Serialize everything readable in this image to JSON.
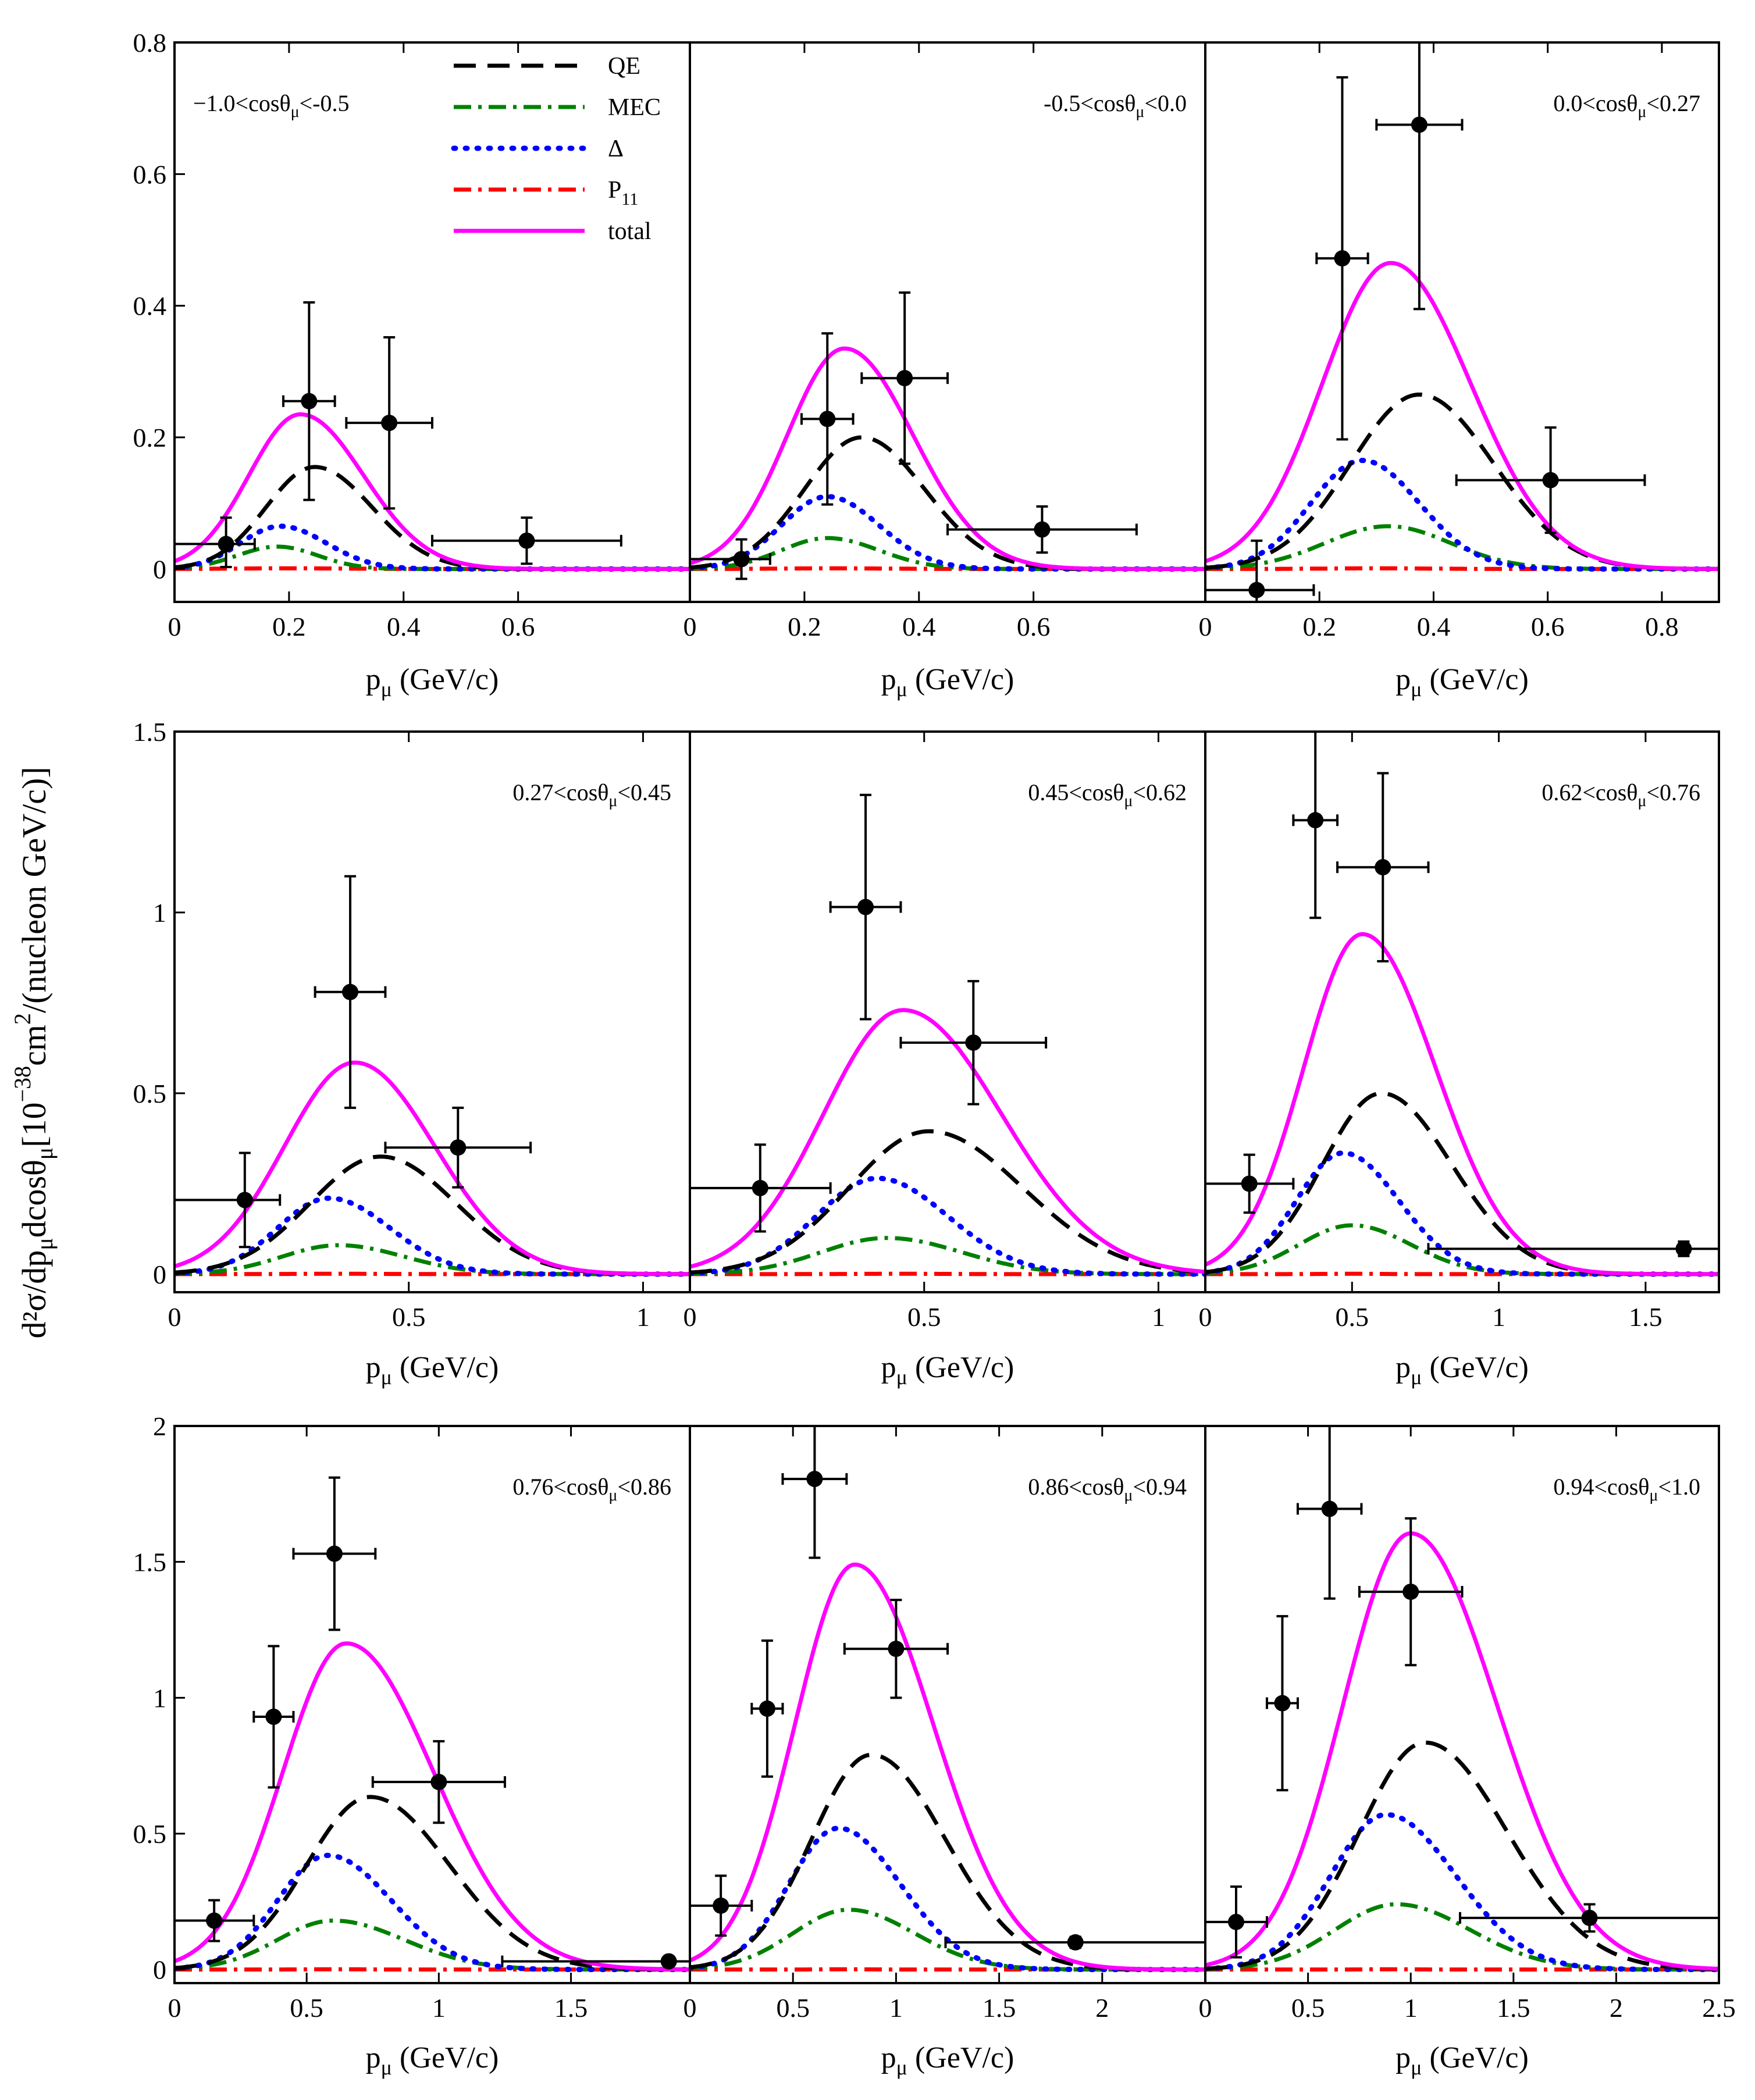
{
  "figure": {
    "ylabel_main": "d²σ/dp",
    "ylabel_mu": "μ",
    "ylabel_mid": "dcosθ",
    "ylabel_mu2": "μ",
    "ylabel_rest": "[10",
    "ylabel_exp": "−38",
    "ylabel_cm": "cm",
    "ylabel_cmexp": "2",
    "ylabel_tail": "/(nucleon GeV/c)]",
    "colors": {
      "qe": "#000000",
      "mec": "#008000",
      "delta": "#0000ff",
      "p11": "#ff0000",
      "total": "#ff00ff",
      "data": "#000000"
    }
  },
  "legend": {
    "items": [
      {
        "key": "qe",
        "label": "QE",
        "style": "dashed"
      },
      {
        "key": "mec",
        "label": "MEC",
        "style": "dashdot"
      },
      {
        "key": "delta",
        "label": "Δ",
        "style": "dotted"
      },
      {
        "key": "p11",
        "label": "P",
        "sub": "11",
        "style": "dashdot"
      },
      {
        "key": "total",
        "label": "total",
        "style": "solid"
      }
    ]
  },
  "chart_data": [
    {
      "type": "line",
      "row": 0,
      "col": 0,
      "title": "−1.0<cosθμ<-0.5",
      "title_pre": "−1.0<cosθ",
      "title_post": "<-0.5",
      "title_pos": "left",
      "xlabel": "pμ (GeV/c)",
      "xlim": [
        0,
        0.9
      ],
      "ylim": [
        -0.05,
        0.8
      ],
      "xticks": [
        0,
        0.2,
        0.4,
        0.6
      ],
      "yticks": [
        0,
        0.2,
        0.4,
        0.6,
        0.8
      ],
      "curves": {
        "total": {
          "peak": 0.235,
          "mu": 0.22,
          "sl": 0.09,
          "sr": 0.11
        },
        "qe": {
          "peak": 0.155,
          "mu": 0.245,
          "sl": 0.085,
          "sr": 0.1
        },
        "delta": {
          "peak": 0.065,
          "mu": 0.185,
          "sl": 0.07,
          "sr": 0.08
        },
        "mec": {
          "peak": 0.034,
          "mu": 0.18,
          "sl": 0.07,
          "sr": 0.07
        },
        "p11": {
          "peak": 0.001,
          "mu": 0.2,
          "sl": 0.1,
          "sr": 0.1
        }
      },
      "data": [
        {
          "x": 0.09,
          "y": 0.038,
          "xerr": [
            0.09,
            0.05
          ],
          "yerr": [
            0.035,
            0.04
          ]
        },
        {
          "x": 0.235,
          "y": 0.255,
          "xerr": [
            0.045,
            0.045
          ],
          "yerr": [
            0.15,
            0.15
          ]
        },
        {
          "x": 0.375,
          "y": 0.222,
          "xerr": [
            0.075,
            0.075
          ],
          "yerr": [
            0.13,
            0.13
          ]
        },
        {
          "x": 0.615,
          "y": 0.043,
          "xerr": [
            0.165,
            0.165
          ],
          "yerr": [
            0.035,
            0.035
          ]
        }
      ]
    },
    {
      "type": "line",
      "row": 0,
      "col": 1,
      "title": "-0.5<cosθμ<0.0",
      "title_pre": "-0.5<cosθ",
      "title_post": "<0.0",
      "title_pos": "right",
      "xlabel": "pμ (GeV/c)",
      "xlim": [
        0,
        0.9
      ],
      "ylim": [
        -0.05,
        0.8
      ],
      "xticks": [
        0,
        0.2,
        0.4,
        0.6
      ],
      "yticks": [],
      "curves": {
        "total": {
          "peak": 0.335,
          "mu": 0.27,
          "sl": 0.1,
          "sr": 0.12
        },
        "qe": {
          "peak": 0.2,
          "mu": 0.3,
          "sl": 0.1,
          "sr": 0.11
        },
        "delta": {
          "peak": 0.11,
          "mu": 0.24,
          "sl": 0.08,
          "sr": 0.09
        },
        "mec": {
          "peak": 0.047,
          "mu": 0.24,
          "sl": 0.08,
          "sr": 0.09
        },
        "p11": {
          "peak": 0.001,
          "mu": 0.25,
          "sl": 0.1,
          "sr": 0.1
        }
      },
      "data": [
        {
          "x": 0.09,
          "y": 0.015,
          "xerr": [
            0.09,
            0.05
          ],
          "yerr": [
            0.03,
            0.03
          ]
        },
        {
          "x": 0.24,
          "y": 0.228,
          "xerr": [
            0.045,
            0.045
          ],
          "yerr": [
            0.13,
            0.13
          ]
        },
        {
          "x": 0.375,
          "y": 0.29,
          "xerr": [
            0.075,
            0.075
          ],
          "yerr": [
            0.13,
            0.13
          ]
        },
        {
          "x": 0.615,
          "y": 0.06,
          "xerr": [
            0.165,
            0.165
          ],
          "yerr": [
            0.035,
            0.035
          ]
        }
      ]
    },
    {
      "type": "line",
      "row": 0,
      "col": 2,
      "title": "0.0<cosθμ<0.27",
      "title_pre": "0.0<cosθ",
      "title_post": "<0.27",
      "title_pos": "right",
      "xlabel": "pμ (GeV/c)",
      "xlim": [
        0,
        0.9
      ],
      "ylim": [
        -0.05,
        0.8
      ],
      "xticks": [
        0,
        0.2,
        0.4,
        0.6,
        0.8
      ],
      "yticks": [],
      "curves": {
        "total": {
          "peak": 0.465,
          "mu": 0.325,
          "sl": 0.12,
          "sr": 0.14
        },
        "qe": {
          "peak": 0.265,
          "mu": 0.375,
          "sl": 0.12,
          "sr": 0.13
        },
        "delta": {
          "peak": 0.165,
          "mu": 0.275,
          "sl": 0.09,
          "sr": 0.1
        },
        "mec": {
          "peak": 0.065,
          "mu": 0.32,
          "sl": 0.11,
          "sr": 0.11
        },
        "p11": {
          "peak": 0.001,
          "mu": 0.3,
          "sl": 0.1,
          "sr": 0.1
        }
      },
      "data": [
        {
          "x": 0.09,
          "y": -0.032,
          "xerr": [
            0.09,
            0.1
          ],
          "yerr": [
            0.075,
            0.075
          ]
        },
        {
          "x": 0.24,
          "y": 0.472,
          "xerr": [
            0.045,
            0.045
          ],
          "yerr": [
            0.275,
            0.275
          ]
        },
        {
          "x": 0.375,
          "y": 0.675,
          "xerr": [
            0.075,
            0.075
          ],
          "yerr": [
            0.28,
            0.28
          ]
        },
        {
          "x": 0.605,
          "y": 0.135,
          "xerr": [
            0.165,
            0.165
          ],
          "yerr": [
            0.08,
            0.08
          ]
        }
      ]
    },
    {
      "type": "line",
      "row": 1,
      "col": 0,
      "title": "0.27<cosθμ<0.45",
      "title_pre": "0.27<cosθ",
      "title_post": "<0.45",
      "title_pos": "right",
      "xlabel": "pμ (GeV/c)",
      "xlim": [
        0,
        1.1
      ],
      "ylim": [
        -0.05,
        1.5
      ],
      "xticks": [
        0,
        0.5,
        1
      ],
      "yticks": [
        0,
        0.5,
        1,
        1.5
      ],
      "curves": {
        "total": {
          "peak": 0.585,
          "mu": 0.385,
          "sl": 0.15,
          "sr": 0.17
        },
        "qe": {
          "peak": 0.325,
          "mu": 0.44,
          "sl": 0.15,
          "sr": 0.16
        },
        "delta": {
          "peak": 0.21,
          "mu": 0.33,
          "sl": 0.11,
          "sr": 0.13
        },
        "mec": {
          "peak": 0.08,
          "mu": 0.35,
          "sl": 0.12,
          "sr": 0.14
        },
        "p11": {
          "peak": 0.001,
          "mu": 0.35,
          "sl": 0.1,
          "sr": 0.1
        }
      },
      "data": [
        {
          "x": 0.15,
          "y": 0.205,
          "xerr": [
            0.15,
            0.075
          ],
          "yerr": [
            0.13,
            0.13
          ]
        },
        {
          "x": 0.375,
          "y": 0.78,
          "xerr": [
            0.075,
            0.075
          ],
          "yerr": [
            0.32,
            0.32
          ]
        },
        {
          "x": 0.605,
          "y": 0.35,
          "xerr": [
            0.155,
            0.155
          ],
          "yerr": [
            0.11,
            0.11
          ]
        }
      ]
    },
    {
      "type": "line",
      "row": 1,
      "col": 1,
      "title": "0.45<cosθμ<0.62",
      "title_pre": "0.45<cosθ",
      "title_post": "<0.62",
      "title_pos": "right",
      "xlabel": "pμ (GeV/c)",
      "xlim": [
        0,
        1.1
      ],
      "ylim": [
        -0.05,
        1.5
      ],
      "xticks": [
        0,
        0.5,
        1
      ],
      "yticks": [],
      "curves": {
        "total": {
          "peak": 0.73,
          "mu": 0.455,
          "sl": 0.17,
          "sr": 0.21
        },
        "qe": {
          "peak": 0.395,
          "mu": 0.51,
          "sl": 0.17,
          "sr": 0.2
        },
        "delta": {
          "peak": 0.265,
          "mu": 0.4,
          "sl": 0.13,
          "sr": 0.15
        },
        "mec": {
          "peak": 0.1,
          "mu": 0.42,
          "sl": 0.14,
          "sr": 0.16
        },
        "p11": {
          "peak": 0.001,
          "mu": 0.45,
          "sl": 0.1,
          "sr": 0.1
        }
      },
      "data": [
        {
          "x": 0.15,
          "y": 0.238,
          "xerr": [
            0.15,
            0.15
          ],
          "yerr": [
            0.12,
            0.12
          ]
        },
        {
          "x": 0.375,
          "y": 1.015,
          "xerr": [
            0.075,
            0.075
          ],
          "yerr": [
            0.31,
            0.31
          ]
        },
        {
          "x": 0.605,
          "y": 0.64,
          "xerr": [
            0.155,
            0.155
          ],
          "yerr": [
            0.17,
            0.17
          ]
        }
      ]
    },
    {
      "type": "line",
      "row": 1,
      "col": 2,
      "title": "0.62<cosθμ<0.76",
      "title_pre": "0.62<cosθ",
      "title_post": "<0.76",
      "title_pos": "right",
      "xlabel": "pμ (GeV/c)",
      "xlim": [
        0,
        1.75
      ],
      "ylim": [
        -0.05,
        1.5
      ],
      "xticks": [
        0,
        0.5,
        1,
        1.5
      ],
      "yticks": [],
      "curves": {
        "total": {
          "peak": 0.94,
          "mu": 0.535,
          "sl": 0.2,
          "sr": 0.25
        },
        "qe": {
          "peak": 0.5,
          "mu": 0.6,
          "sl": 0.2,
          "sr": 0.24
        },
        "delta": {
          "peak": 0.335,
          "mu": 0.47,
          "sl": 0.16,
          "sr": 0.19
        },
        "mec": {
          "peak": 0.135,
          "mu": 0.5,
          "sl": 0.18,
          "sr": 0.2
        },
        "p11": {
          "peak": 0.001,
          "mu": 0.5,
          "sl": 0.1,
          "sr": 0.1
        }
      },
      "data": [
        {
          "x": 0.15,
          "y": 0.25,
          "xerr": [
            0.15,
            0.15
          ],
          "yerr": [
            0.08,
            0.08
          ]
        },
        {
          "x": 0.375,
          "y": 1.255,
          "xerr": [
            0.075,
            0.075
          ],
          "yerr": [
            0.27,
            0.27
          ]
        },
        {
          "x": 0.605,
          "y": 1.125,
          "xerr": [
            0.155,
            0.155
          ],
          "yerr": [
            0.26,
            0.26
          ]
        },
        {
          "x": 1.63,
          "y": 0.07,
          "xerr": [
            0.87,
            0.87
          ],
          "yerr": [
            0.02,
            0.02
          ]
        }
      ]
    },
    {
      "type": "line",
      "row": 2,
      "col": 0,
      "title": "0.76<cosθμ<0.86",
      "title_pre": "0.76<cosθ",
      "title_post": "<0.86",
      "title_pos": "right",
      "xlabel": "pμ (GeV/c)",
      "xlim": [
        0,
        1.95
      ],
      "ylim": [
        -0.05,
        2.0
      ],
      "xticks": [
        0,
        0.5,
        1,
        1.5
      ],
      "yticks": [
        0,
        0.5,
        1,
        1.5,
        2
      ],
      "curves": {
        "total": {
          "peak": 1.2,
          "mu": 0.65,
          "sl": 0.24,
          "sr": 0.33
        },
        "qe": {
          "peak": 0.635,
          "mu": 0.74,
          "sl": 0.24,
          "sr": 0.3
        },
        "delta": {
          "peak": 0.42,
          "mu": 0.58,
          "sl": 0.19,
          "sr": 0.24
        },
        "mec": {
          "peak": 0.18,
          "mu": 0.6,
          "sl": 0.21,
          "sr": 0.27
        },
        "p11": {
          "peak": 0.001,
          "mu": 0.6,
          "sl": 0.1,
          "sr": 0.1
        }
      },
      "data": [
        {
          "x": 0.15,
          "y": 0.18,
          "xerr": [
            0.15,
            0.15
          ],
          "yerr": [
            0.075,
            0.075
          ]
        },
        {
          "x": 0.375,
          "y": 0.93,
          "xerr": [
            0.075,
            0.075
          ],
          "yerr": [
            0.26,
            0.26
          ]
        },
        {
          "x": 0.605,
          "y": 1.53,
          "xerr": [
            0.155,
            0.155
          ],
          "yerr": [
            0.28,
            0.28
          ]
        },
        {
          "x": 1.0,
          "y": 0.69,
          "xerr": [
            0.25,
            0.25
          ],
          "yerr": [
            0.15,
            0.15
          ]
        },
        {
          "x": 1.87,
          "y": 0.03,
          "xerr": [
            0.63,
            0.63
          ],
          "yerr": [
            0.01,
            0.01
          ]
        }
      ]
    },
    {
      "type": "line",
      "row": 2,
      "col": 1,
      "title": "0.86<cosθμ<0.94",
      "title_pre": "0.86<cosθ",
      "title_post": "<0.94",
      "title_pos": "right",
      "xlabel": "pμ (GeV/c)",
      "xlim": [
        0,
        2.5
      ],
      "ylim": [
        -0.05,
        2.0
      ],
      "xticks": [
        0,
        0.5,
        1,
        1.5,
        2
      ],
      "yticks": [],
      "curves": {
        "total": {
          "peak": 1.49,
          "mu": 0.8,
          "sl": 0.29,
          "sr": 0.38
        },
        "qe": {
          "peak": 0.79,
          "mu": 0.88,
          "sl": 0.29,
          "sr": 0.36
        },
        "delta": {
          "peak": 0.52,
          "mu": 0.72,
          "sl": 0.24,
          "sr": 0.3
        },
        "mec": {
          "peak": 0.22,
          "mu": 0.77,
          "sl": 0.27,
          "sr": 0.32
        },
        "p11": {
          "peak": 0.001,
          "mu": 0.75,
          "sl": 0.1,
          "sr": 0.1
        }
      },
      "data": [
        {
          "x": 0.15,
          "y": 0.235,
          "xerr": [
            0.15,
            0.15
          ],
          "yerr": [
            0.11,
            0.11
          ]
        },
        {
          "x": 0.375,
          "y": 0.96,
          "xerr": [
            0.075,
            0.075
          ],
          "yerr": [
            0.25,
            0.25
          ]
        },
        {
          "x": 0.605,
          "y": 1.805,
          "xerr": [
            0.155,
            0.155
          ],
          "yerr": [
            0.29,
            0.29
          ]
        },
        {
          "x": 1.0,
          "y": 1.18,
          "xerr": [
            0.25,
            0.25
          ],
          "yerr": [
            0.18,
            0.18
          ]
        },
        {
          "x": 1.87,
          "y": 0.1,
          "xerr": [
            0.63,
            0.63
          ],
          "yerr": [
            0.02,
            0.02
          ]
        }
      ]
    },
    {
      "type": "line",
      "row": 2,
      "col": 2,
      "title": "0.94<cosθμ<1.0",
      "title_pre": "0.94<cosθ",
      "title_post": "<1.0",
      "title_pos": "right",
      "xlabel": "pμ (GeV/c)",
      "xlim": [
        0,
        2.5
      ],
      "ylim": [
        -0.05,
        2.0
      ],
      "xticks": [
        0,
        0.5,
        1,
        1.5,
        2,
        2.5
      ],
      "yticks": [],
      "curves": {
        "total": {
          "peak": 1.605,
          "mu": 1.0,
          "sl": 0.33,
          "sr": 0.42
        },
        "qe": {
          "peak": 0.835,
          "mu": 1.07,
          "sl": 0.32,
          "sr": 0.4
        },
        "delta": {
          "peak": 0.57,
          "mu": 0.88,
          "sl": 0.27,
          "sr": 0.34
        },
        "mec": {
          "peak": 0.24,
          "mu": 0.93,
          "sl": 0.3,
          "sr": 0.36
        },
        "p11": {
          "peak": 0.001,
          "mu": 0.9,
          "sl": 0.1,
          "sr": 0.1
        }
      },
      "data": [
        {
          "x": 0.15,
          "y": 0.175,
          "xerr": [
            0.15,
            0.15
          ],
          "yerr": [
            0.13,
            0.13
          ]
        },
        {
          "x": 0.375,
          "y": 0.98,
          "xerr": [
            0.075,
            0.075
          ],
          "yerr": [
            0.32,
            0.32
          ]
        },
        {
          "x": 0.605,
          "y": 1.695,
          "xerr": [
            0.155,
            0.155
          ],
          "yerr": [
            0.33,
            0.33
          ]
        },
        {
          "x": 1.0,
          "y": 1.39,
          "xerr": [
            0.25,
            0.25
          ],
          "yerr": [
            0.27,
            0.27
          ]
        },
        {
          "x": 1.87,
          "y": 0.19,
          "xerr": [
            0.63,
            0.63
          ],
          "yerr": [
            0.05,
            0.05
          ]
        }
      ]
    }
  ]
}
